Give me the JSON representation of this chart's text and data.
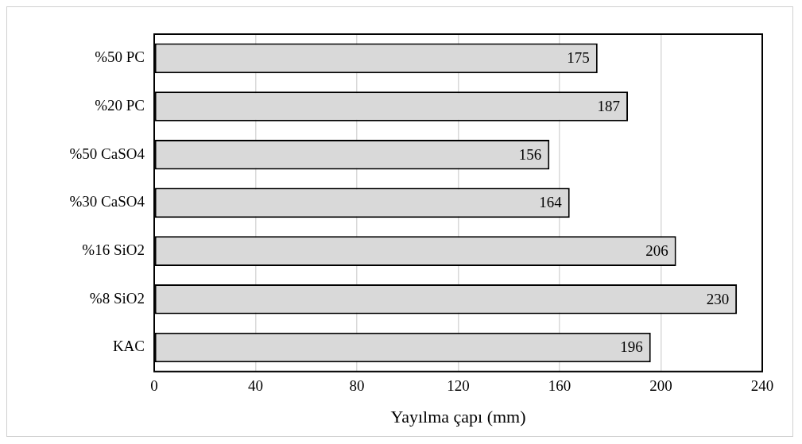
{
  "chart_data": {
    "type": "bar",
    "orientation": "horizontal",
    "xlabel": "Yayılma çapı (mm)",
    "categories": [
      "%50 PC",
      "%20 PC",
      "%50 CaSO4",
      "%30 CaSO4",
      "%16 SiO2",
      "%8 SiO2",
      "KAC"
    ],
    "values": [
      175,
      187,
      156,
      164,
      206,
      230,
      196
    ],
    "color": "#d9d9d9",
    "xlim": [
      0,
      240
    ],
    "xticks": [
      0,
      40,
      80,
      120,
      160,
      200,
      240
    ],
    "grid": "x",
    "data_labels": true,
    "legend": false
  }
}
